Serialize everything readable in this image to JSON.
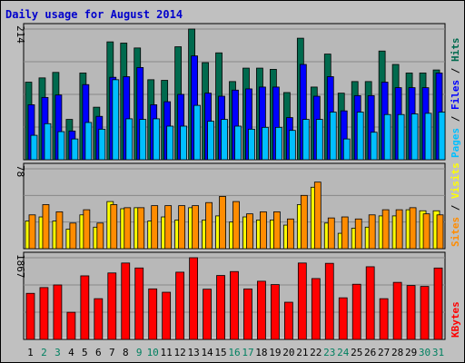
{
  "title": "Daily usage for August 2014",
  "colors": {
    "background": "#c0c0c0",
    "panel": "#b8b8b8",
    "title": "#0000cc",
    "grid": "#888888",
    "hits": "#006a4e",
    "files": "#0000ff",
    "pages": "#00bfff",
    "visits": "#ffff00",
    "sites": "#ff8c00",
    "kbytes": "#ff0000",
    "weekend_label": "#008060",
    "weekday_label": "#000000",
    "bar_outline": "#000000"
  },
  "chart_data": [
    {
      "type": "bar",
      "title": "Daily usage for August 2014",
      "panel": "hits_files_pages",
      "ymax_label": "214",
      "ylim": [
        0,
        214
      ],
      "grid": true,
      "legend": [
        "Pages",
        "Files",
        "Hits"
      ],
      "legend_placement": "right",
      "categories": [
        "1",
        "2",
        "3",
        "4",
        "5",
        "6",
        "7",
        "8",
        "9",
        "10",
        "11",
        "12",
        "13",
        "14",
        "15",
        "16",
        "17",
        "18",
        "19",
        "20",
        "21",
        "22",
        "23",
        "24",
        "25",
        "26",
        "27",
        "28",
        "29",
        "30",
        "31"
      ],
      "weekend_days": [
        "2",
        "3",
        "9",
        "10",
        "16",
        "17",
        "23",
        "24",
        "30",
        "31"
      ],
      "series": [
        {
          "name": "Hits",
          "color_key": "hits",
          "values": [
            127,
            134,
            143,
            66,
            142,
            86,
            193,
            191,
            183,
            131,
            130,
            185,
            214,
            159,
            175,
            128,
            150,
            150,
            148,
            110,
            199,
            119,
            173,
            109,
            128,
            128,
            178,
            156,
            142,
            142,
            147
          ]
        },
        {
          "name": "Files",
          "color_key": "files",
          "values": [
            90,
            102,
            106,
            47,
            123,
            71,
            135,
            136,
            151,
            90,
            95,
            107,
            170,
            109,
            104,
            114,
            116,
            119,
            119,
            69,
            156,
            104,
            136,
            80,
            105,
            105,
            127,
            118,
            118,
            118,
            142
          ]
        },
        {
          "name": "Pages",
          "color_key": "pages",
          "values": [
            40,
            59,
            46,
            34,
            61,
            50,
            131,
            67,
            66,
            67,
            55,
            55,
            89,
            63,
            66,
            55,
            50,
            53,
            53,
            48,
            66,
            66,
            78,
            34,
            78,
            45,
            74,
            74,
            75,
            76,
            78
          ]
        }
      ]
    },
    {
      "type": "bar",
      "panel": "visits_sites",
      "ymax_label": "78",
      "ylim": [
        0,
        78
      ],
      "grid": true,
      "legend": [
        "Sites",
        "Visits"
      ],
      "legend_placement": "right",
      "categories": [
        "1",
        "2",
        "3",
        "4",
        "5",
        "6",
        "7",
        "8",
        "9",
        "10",
        "11",
        "12",
        "13",
        "14",
        "15",
        "16",
        "17",
        "18",
        "19",
        "20",
        "21",
        "22",
        "23",
        "24",
        "25",
        "26",
        "27",
        "28",
        "29",
        "30",
        "31"
      ],
      "series": [
        {
          "name": "Visits",
          "color_key": "visits",
          "values": [
            27,
            31,
            27,
            19,
            33,
            21,
            46,
            39,
            40,
            27,
            31,
            28,
            40,
            28,
            32,
            26,
            31,
            28,
            28,
            23,
            43,
            60,
            25,
            15,
            20,
            21,
            32,
            32,
            38,
            37,
            37
          ]
        },
        {
          "name": "Sites",
          "color_key": "sites",
          "values": [
            33,
            43,
            36,
            25,
            38,
            25,
            43,
            40,
            40,
            42,
            42,
            42,
            42,
            45,
            51,
            46,
            34,
            36,
            36,
            29,
            52,
            65,
            30,
            31,
            29,
            33,
            38,
            38,
            40,
            34,
            33
          ]
        }
      ]
    },
    {
      "type": "bar",
      "panel": "kbytes",
      "ymax_label": "1867",
      "ylim": [
        0,
        1867
      ],
      "grid": true,
      "legend": [
        "KBytes"
      ],
      "legend_placement": "right",
      "categories": [
        "1",
        "2",
        "3",
        "4",
        "5",
        "6",
        "7",
        "8",
        "9",
        "10",
        "11",
        "12",
        "13",
        "14",
        "15",
        "16",
        "17",
        "18",
        "19",
        "20",
        "21",
        "22",
        "23",
        "24",
        "25",
        "26",
        "27",
        "28",
        "29",
        "30",
        "31"
      ],
      "series": [
        {
          "name": "KBytes",
          "color_key": "kbytes",
          "values": [
            1053,
            1185,
            1245,
            620,
            1453,
            931,
            1519,
            1746,
            1633,
            1155,
            1078,
            1537,
            1867,
            1148,
            1461,
            1551,
            1154,
            1330,
            1253,
            850,
            1746,
            1391,
            1739,
            951,
            1261,
            1661,
            931,
            1304,
            1232,
            1211,
            1632
          ]
        }
      ]
    }
  ]
}
